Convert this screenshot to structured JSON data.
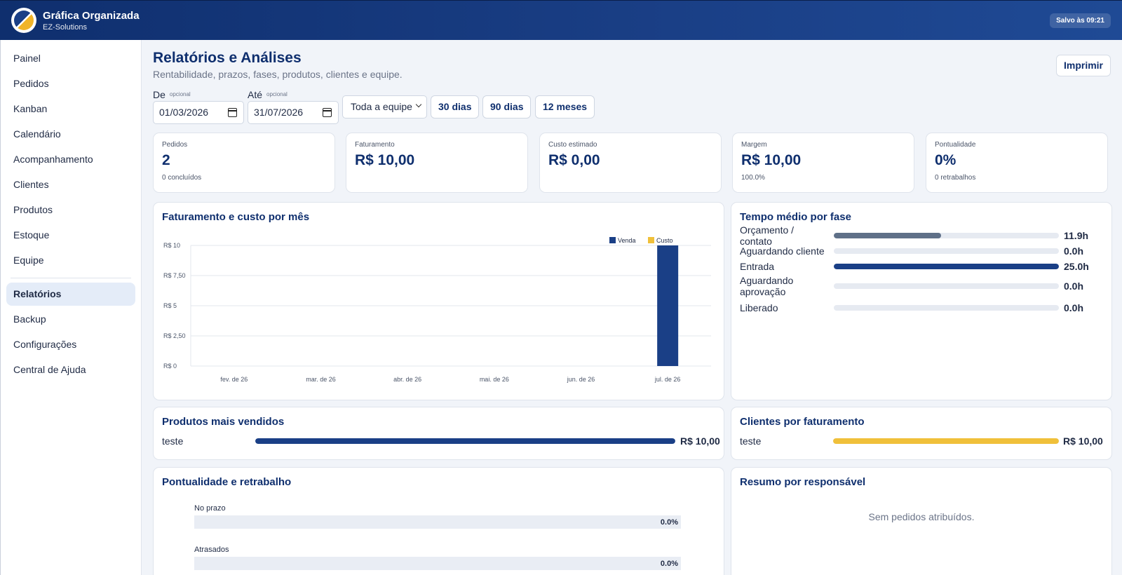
{
  "app": {
    "title": "Gráfica Organizada",
    "subtitle": "EZ-Solutions",
    "saved_status": "Salvo às 09:21"
  },
  "sidebar": {
    "items": [
      {
        "label": "Painel"
      },
      {
        "label": "Pedidos"
      },
      {
        "label": "Kanban"
      },
      {
        "label": "Calendário"
      },
      {
        "label": "Acompanhamento"
      },
      {
        "label": "Clientes"
      },
      {
        "label": "Produtos"
      },
      {
        "label": "Estoque"
      },
      {
        "label": "Equipe"
      },
      {
        "label": "Relatórios",
        "active": true
      },
      {
        "label": "Backup"
      },
      {
        "label": "Configurações"
      },
      {
        "label": "Central de Ajuda"
      }
    ]
  },
  "page": {
    "title": "Relatórios e Análises",
    "subtitle": "Rentabilidade, prazos, fases, produtos, clientes e equipe.",
    "print_label": "Imprimir"
  },
  "filters": {
    "from_label": "De",
    "from_hint": "opcional",
    "from_value": "01/03/2026",
    "to_label": "Até",
    "to_hint": "opcional",
    "to_value": "31/07/2026",
    "team_select": "Toda a equipe",
    "presets": [
      "30 dias",
      "90 dias",
      "12 meses"
    ]
  },
  "kpis": [
    {
      "label": "Pedidos",
      "value": "2",
      "note": "0 concluídos"
    },
    {
      "label": "Faturamento",
      "value": "R$ 10,00",
      "note": ""
    },
    {
      "label": "Custo estimado",
      "value": "R$ 0,00",
      "note": ""
    },
    {
      "label": "Margem",
      "value": "R$ 10,00",
      "note": "100.0%"
    },
    {
      "label": "Pontualidade",
      "value": "0%",
      "note": "0 retrabalhos"
    }
  ],
  "revenue_card": {
    "title": "Faturamento e custo por mês"
  },
  "chart_data": {
    "type": "bar",
    "title": "",
    "categories": [
      "fev. de 26",
      "mar. de 26",
      "abr. de 26",
      "mai. de 26",
      "jun. de 26",
      "jul. de 26"
    ],
    "series": [
      {
        "name": "Venda",
        "values": [
          0,
          0,
          0,
          0,
          0,
          10
        ],
        "color": "#1a3f86"
      },
      {
        "name": "Custo",
        "values": [
          0,
          0,
          0,
          0,
          0,
          0
        ],
        "color": "#f0c03a"
      }
    ],
    "y_ticks": [
      "R$ 0",
      "R$ 2,50",
      "R$ 5",
      "R$ 7,50",
      "R$ 10"
    ],
    "ylim": [
      0,
      10
    ],
    "grid": true,
    "legend": "top-right"
  },
  "phase_card": {
    "title": "Tempo médio por fase",
    "rows": [
      {
        "label": "Orçamento / contato",
        "value": "11.9h",
        "hours": 11.9,
        "color": "#5f7088"
      },
      {
        "label": "Aguardando cliente",
        "value": "0.0h",
        "hours": 0,
        "color": "#5f7088"
      },
      {
        "label": "Entrada",
        "value": "25.0h",
        "hours": 25.0,
        "color": "#1a3f86"
      },
      {
        "label": "Aguardando aprovação",
        "value": "0.0h",
        "hours": 0,
        "color": "#5f7088"
      },
      {
        "label": "Liberado",
        "value": "0.0h",
        "hours": 0,
        "color": "#5f7088"
      }
    ]
  },
  "products_card": {
    "title": "Produtos mais vendidos",
    "rows": [
      {
        "label": "teste",
        "value": "R$ 10,00",
        "fraction": 1.0,
        "color": "#1a3f86"
      }
    ]
  },
  "clients_card": {
    "title": "Clientes por faturamento",
    "rows": [
      {
        "label": "teste",
        "value": "R$ 10,00",
        "fraction": 1.0,
        "color": "#f0c03a"
      }
    ]
  },
  "punctuality_card": {
    "title": "Pontualidade e retrabalho",
    "rows": [
      {
        "label": "No prazo",
        "value": "0.0%",
        "fraction": 0
      },
      {
        "label": "Atrasados",
        "value": "0.0%",
        "fraction": 0
      }
    ]
  },
  "owners_card": {
    "title": "Resumo por responsável",
    "empty_text": "Sem pedidos atribuídos."
  }
}
